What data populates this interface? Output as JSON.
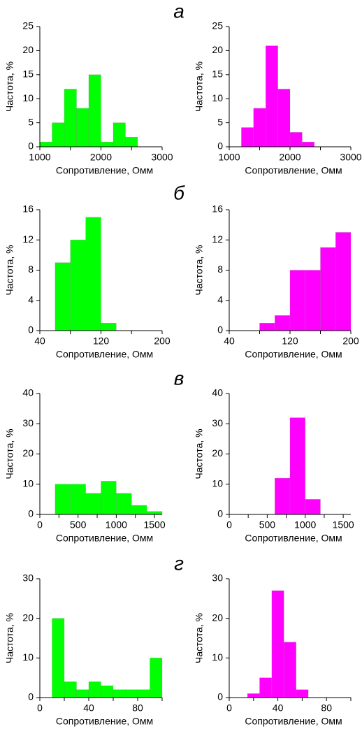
{
  "section_labels": [
    "а",
    "б",
    "в",
    "г"
  ],
  "chart_data": [
    {
      "type": "histogram",
      "xlabel": "Сопротивление, Омм",
      "ylabel": "Частота, %",
      "color": "#00ff00",
      "bins": [
        1000,
        1200,
        1400,
        1600,
        1800,
        2000,
        2200,
        2400,
        2600
      ],
      "values": [
        1,
        5,
        12,
        8,
        15,
        1,
        5,
        2
      ],
      "xlim": [
        1000,
        3000
      ],
      "xticks": [
        1000,
        2000,
        3000
      ],
      "xminorticks": [
        1500,
        2500
      ],
      "ylim": [
        0,
        25
      ],
      "yticks": [
        0,
        5,
        10,
        15,
        20,
        25
      ]
    },
    {
      "type": "histogram",
      "xlabel": "Сопротивление, Омм",
      "ylabel": "Частота, %",
      "color": "#ff00ff",
      "bins": [
        1200,
        1400,
        1600,
        1800,
        2000,
        2200,
        2400
      ],
      "values": [
        4,
        8,
        21,
        12,
        3,
        1
      ],
      "xlim": [
        1000,
        3000
      ],
      "xticks": [
        1000,
        2000,
        3000
      ],
      "xminorticks": [
        1500,
        2500
      ],
      "ylim": [
        0,
        25
      ],
      "yticks": [
        0,
        5,
        10,
        15,
        20,
        25
      ]
    },
    {
      "type": "histogram",
      "xlabel": "Сопротивление, Омм",
      "ylabel": "Частота, %",
      "color": "#00ff00",
      "bins": [
        60,
        80,
        100,
        120,
        140
      ],
      "values": [
        9,
        12,
        15,
        1
      ],
      "xlim": [
        40,
        200
      ],
      "xticks": [
        40,
        120,
        200
      ],
      "xminorticks": [
        80,
        160
      ],
      "ylim": [
        0,
        16
      ],
      "yticks": [
        0,
        4,
        8,
        12,
        16
      ]
    },
    {
      "type": "histogram",
      "xlabel": "Сопротивление, Омм",
      "ylabel": "Частота, %",
      "color": "#ff00ff",
      "bins": [
        80,
        100,
        120,
        140,
        160,
        180,
        200
      ],
      "values": [
        1,
        2,
        8,
        8,
        11,
        13
      ],
      "xlim": [
        40,
        200
      ],
      "xticks": [
        40,
        120,
        200
      ],
      "xminorticks": [
        80,
        160
      ],
      "ylim": [
        0,
        16
      ],
      "yticks": [
        0,
        4,
        8,
        12,
        16
      ]
    },
    {
      "type": "histogram",
      "xlabel": "Сопротивление, Омм",
      "ylabel": "Частота, %",
      "color": "#00ff00",
      "bins": [
        200,
        400,
        600,
        800,
        1000,
        1200,
        1400,
        1600
      ],
      "values": [
        10,
        10,
        7,
        11,
        7,
        3,
        1
      ],
      "xlim": [
        0,
        1600
      ],
      "xticks": [
        0,
        500,
        1000,
        1500
      ],
      "xminorticks": [
        250,
        750,
        1250
      ],
      "ylim": [
        0,
        40
      ],
      "yticks": [
        0,
        10,
        20,
        30,
        40
      ]
    },
    {
      "type": "histogram",
      "xlabel": "Сопротивление, Омм",
      "ylabel": "Частота, %",
      "color": "#ff00ff",
      "bins": [
        600,
        800,
        1000,
        1200
      ],
      "values": [
        12,
        32,
        5
      ],
      "xlim": [
        0,
        1600
      ],
      "xticks": [
        0,
        500,
        1000,
        1500
      ],
      "xminorticks": [
        250,
        750,
        1250
      ],
      "ylim": [
        0,
        40
      ],
      "yticks": [
        0,
        10,
        20,
        30,
        40
      ]
    },
    {
      "type": "histogram",
      "xlabel": "Сопротивление, Омм",
      "ylabel": "Частота, %",
      "color": "#00ff00",
      "bins": [
        10,
        20,
        30,
        40,
        50,
        60,
        70,
        80,
        90,
        100
      ],
      "values": [
        20,
        4,
        2,
        4,
        3,
        2,
        2,
        2,
        10
      ],
      "xlim": [
        0,
        100
      ],
      "xticks": [
        0,
        40,
        80
      ],
      "xminorticks": [
        20,
        60,
        100
      ],
      "ylim": [
        0,
        30
      ],
      "yticks": [
        0,
        10,
        20,
        30
      ]
    },
    {
      "type": "histogram",
      "xlabel": "Сопротивление, Омм",
      "ylabel": "Частота, %",
      "color": "#ff00ff",
      "bins": [
        15,
        25,
        35,
        45,
        55,
        65
      ],
      "values": [
        1,
        5,
        27,
        14,
        2
      ],
      "xlim": [
        0,
        100
      ],
      "xticks": [
        0,
        40,
        80
      ],
      "xminorticks": [
        20,
        60,
        100
      ],
      "ylim": [
        0,
        30
      ],
      "yticks": [
        0,
        10,
        20,
        30
      ]
    }
  ]
}
